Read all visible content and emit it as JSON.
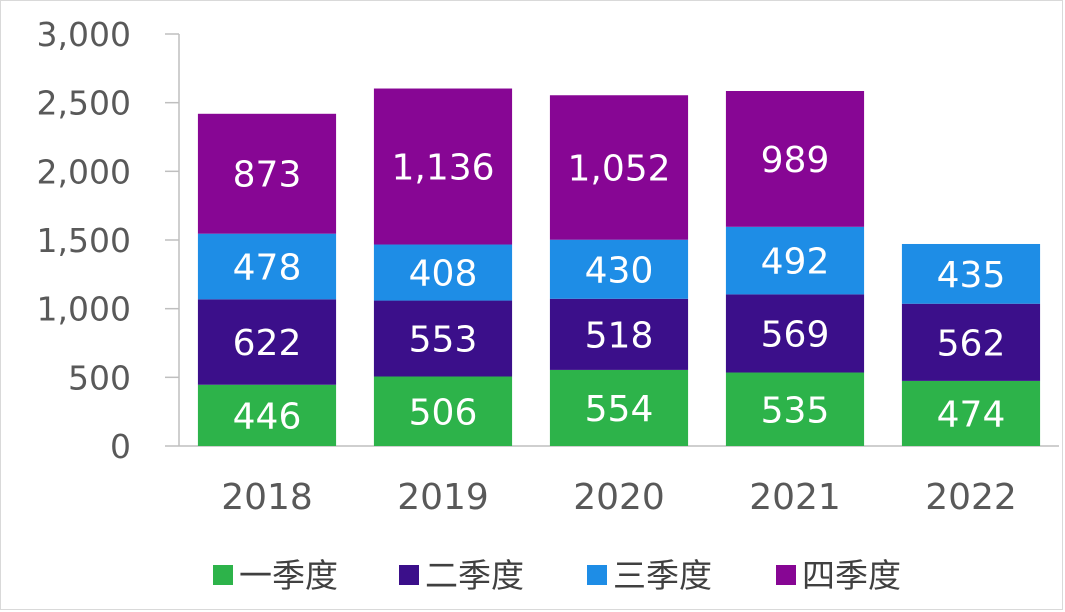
{
  "chart_data": {
    "type": "bar",
    "stacked": true,
    "categories": [
      "2018",
      "2019",
      "2020",
      "2021",
      "2022"
    ],
    "series": [
      {
        "name": "一季度",
        "color": "#2db34a",
        "values": [
          446,
          506,
          554,
          535,
          474
        ],
        "labels": [
          "446",
          "506",
          "554",
          "535",
          "474"
        ]
      },
      {
        "name": "二季度",
        "color": "#3b0f8a",
        "values": [
          622,
          553,
          518,
          569,
          562
        ],
        "labels": [
          "622",
          "553",
          "518",
          "569",
          "562"
        ]
      },
      {
        "name": "三季度",
        "color": "#1e8de6",
        "values": [
          478,
          408,
          430,
          492,
          435
        ],
        "labels": [
          "478",
          "408",
          "430",
          "492",
          "435"
        ]
      },
      {
        "name": "四季度",
        "color": "#870694",
        "values": [
          873,
          1136,
          1052,
          989,
          null
        ],
        "labels": [
          "873",
          "1,136",
          "1,052",
          "989",
          ""
        ]
      }
    ],
    "ylim": [
      0,
      3000
    ],
    "yticks": [
      0,
      500,
      1000,
      1500,
      2000,
      2500,
      3000
    ],
    "ytick_labels": [
      "0",
      "500",
      "1,000",
      "1,500",
      "2,000",
      "2,500",
      "3,000"
    ],
    "grid": false,
    "legend_position": "bottom"
  }
}
